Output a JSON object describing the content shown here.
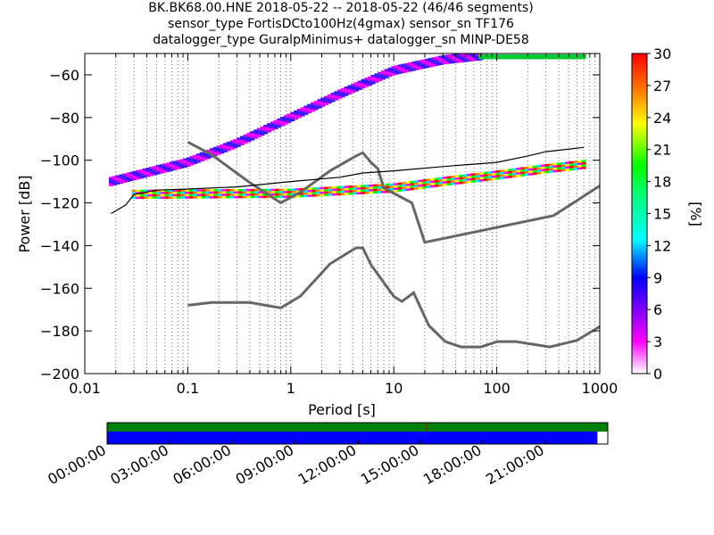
{
  "title": {
    "line1": "BK.BK68.00.HNE   2018-05-22 -- 2018-05-22  (46/46 segments)",
    "line2": "sensor_type FortisDCto100Hz(4gmax) sensor_sn TF176",
    "line3": "datalogger_type GuralpMinimus+ datalogger_sn MINP-DE58"
  },
  "chart_data": [
    {
      "type": "heatmap",
      "kind": "probabilistic power spectral density",
      "xlabel": "Period [s]",
      "ylabel": "Power [dB]",
      "x_scale": "log",
      "xlim": [
        0.01,
        1000
      ],
      "ylim": [
        -200,
        -50
      ],
      "x_ticks": [
        0.01,
        0.1,
        1,
        10,
        100,
        1000
      ],
      "x_tick_labels": [
        "0.01",
        "0.1",
        "1",
        "10",
        "100",
        "1000"
      ],
      "y_ticks": [
        -60,
        -80,
        -100,
        -120,
        -140,
        -160,
        -180,
        -200
      ],
      "y_tick_labels": [
        "−60",
        "−80",
        "−100",
        "−120",
        "−140",
        "−160",
        "−180",
        "−200"
      ],
      "grid": "vertical dotted lines at minor log ticks",
      "colorbar": {
        "label": "[%]",
        "range": [
          0,
          30
        ],
        "ticks": [
          0,
          3,
          6,
          9,
          12,
          15,
          18,
          21,
          24,
          27,
          30
        ],
        "colormap": "white-magenta-blue-cyan-green-yellow-red"
      },
      "psd_bands": [
        {
          "name": "rising band",
          "points": [
            [
              0.018,
              -110
            ],
            [
              0.1,
              -101
            ],
            [
              0.3,
              -92
            ],
            [
              1,
              -80
            ],
            [
              3,
              -69
            ],
            [
              10,
              -58
            ],
            [
              30,
              -53
            ],
            [
              70,
              -51
            ]
          ],
          "colors": [
            "#c000ff",
            "#ff00ff",
            "#6a00ff",
            "#2020ff"
          ]
        },
        {
          "name": "flat band",
          "points": [
            [
              0.03,
              -116
            ],
            [
              1,
              -115.5
            ],
            [
              10,
              -113
            ],
            [
              30,
              -110
            ],
            [
              100,
              -107
            ],
            [
              300,
              -104
            ],
            [
              700,
              -102
            ]
          ],
          "colors": [
            "#ff0000",
            "#ff8000",
            "#ffff00",
            "#00ff00",
            "#00e0ff",
            "#ff00ff"
          ]
        },
        {
          "name": "top right band",
          "points": [
            [
              70,
              -51.5
            ],
            [
              700,
              -51.5
            ]
          ],
          "colors": [
            "#00cc33"
          ]
        }
      ],
      "mode_line": {
        "color": "#000000",
        "points": [
          [
            0.018,
            -125
          ],
          [
            0.025,
            -121
          ],
          [
            0.03,
            -116
          ],
          [
            0.05,
            -114
          ],
          [
            0.1,
            -113.5
          ],
          [
            0.3,
            -112.5
          ],
          [
            1,
            -110
          ],
          [
            3,
            -108
          ],
          [
            5,
            -106
          ],
          [
            10,
            -105
          ],
          [
            30,
            -103
          ],
          [
            100,
            -101
          ],
          [
            200,
            -98
          ],
          [
            300,
            -96
          ],
          [
            700,
            -94
          ]
        ]
      },
      "noise_models": [
        {
          "name": "NHNM",
          "color": "#666666",
          "points": [
            [
              0.1,
              -91.5
            ],
            [
              0.17,
              -97.4
            ],
            [
              0.4,
              -110.5
            ],
            [
              0.8,
              -120
            ],
            [
              1.24,
              -115
            ],
            [
              2.4,
              -105
            ],
            [
              4.3,
              -98
            ],
            [
              5,
              -96.5
            ],
            [
              6,
              -101
            ],
            [
              7,
              -104
            ],
            [
              8,
              -113
            ],
            [
              15,
              -120
            ],
            [
              20,
              -138.5
            ],
            [
              354.8,
              -126
            ],
            [
              1000,
              -112
            ]
          ]
        },
        {
          "name": "NLNM",
          "color": "#666666",
          "points": [
            [
              0.1,
              -168
            ],
            [
              0.17,
              -166.7
            ],
            [
              0.4,
              -166.7
            ],
            [
              0.8,
              -169.2
            ],
            [
              1.24,
              -163.7
            ],
            [
              2.4,
              -148.6
            ],
            [
              4.3,
              -141.1
            ],
            [
              5,
              -141.1
            ],
            [
              6,
              -149
            ],
            [
              10,
              -163.8
            ],
            [
              12,
              -166.2
            ],
            [
              15.6,
              -162.1
            ],
            [
              21.9,
              -177.5
            ],
            [
              31.6,
              -185
            ],
            [
              45,
              -187.5
            ],
            [
              70,
              -187.5
            ],
            [
              101,
              -185
            ],
            [
              154,
              -185
            ],
            [
              328,
              -187.5
            ],
            [
              600,
              -184.4
            ],
            [
              1000,
              -178
            ]
          ]
        }
      ]
    },
    {
      "type": "timeline",
      "kind": "data coverage",
      "tick_labels": [
        "00:00:00",
        "03:00:00",
        "06:00:00",
        "09:00:00",
        "12:00:00",
        "15:00:00",
        "18:00:00",
        "21:00:00"
      ],
      "tick_hours": [
        0,
        3,
        6,
        9,
        12,
        15,
        18,
        21
      ],
      "range_hours": [
        0,
        24
      ],
      "bars": [
        {
          "name": "processed data",
          "color": "#008000",
          "start_hour": 0,
          "end_hour": 24
        },
        {
          "name": "psd coverage",
          "color": "#0000ff",
          "start_hour": 0,
          "end_hour": 23.5
        }
      ],
      "marker": {
        "color": "#cc0000",
        "hour": 15.3
      }
    }
  ]
}
